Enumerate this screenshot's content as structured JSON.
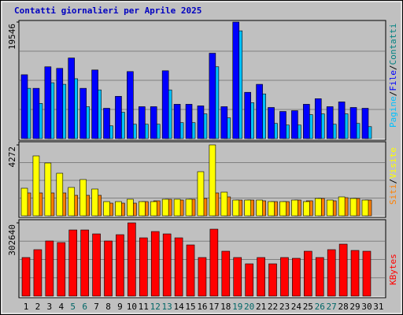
{
  "chart_data": {
    "type": "bar",
    "title": "Contatti giornalieri per Aprile 2025",
    "categories": [
      "1",
      "2",
      "3",
      "4",
      "5",
      "6",
      "7",
      "8",
      "9",
      "10",
      "11",
      "12",
      "13",
      "14",
      "15",
      "16",
      "17",
      "18",
      "19",
      "20",
      "21",
      "22",
      "23",
      "24",
      "25",
      "26",
      "27",
      "28",
      "29",
      "30",
      "31"
    ],
    "category_colors": [
      "#000000",
      "#000000",
      "#000000",
      "#000000",
      "#006666",
      "#006666",
      "#000000",
      "#000000",
      "#000000",
      "#000000",
      "#000000",
      "#006666",
      "#006666",
      "#000000",
      "#000000",
      "#000000",
      "#000000",
      "#000000",
      "#006666",
      "#006666",
      "#000000",
      "#000000",
      "#000000",
      "#000000",
      "#000000",
      "#006666",
      "#006666",
      "#000000",
      "#000000",
      "#000000",
      "#000000"
    ],
    "legend_separator": "/",
    "panels": [
      {
        "ylim": [
          0,
          19546
        ],
        "yticks": [
          19546
        ],
        "series": [
          {
            "name": "Pagine",
            "color": "#00c0ff",
            "axis": "right",
            "values": [
              8434,
              5891,
              9371,
              9104,
              10041,
              5355,
              8167,
              2142,
              4418,
              2410,
              2410,
              2410,
              8167,
              2678,
              2678,
              4150,
              12049,
              3481,
              18074,
              6024,
              7497,
              2544,
              2276,
              2276,
              4016,
              4150,
              2410,
              4150,
              2544,
              2008,
              null
            ]
          },
          {
            "name": "File",
            "color": "#0000ff",
            "axis": "left",
            "values": [
              10710,
              8434,
              12049,
              11781,
              13522,
              8434,
              11513,
              5087,
              7095,
              11246,
              5355,
              5355,
              11380,
              5757,
              5757,
              5489,
              14325,
              5355,
              19546,
              7765,
              9104,
              5221,
              4552,
              4686,
              5757,
              6694,
              5355,
              6158,
              5221,
              5087,
              null
            ]
          }
        ],
        "legend_only": {
          "name": "Contatti",
          "color": "#008080"
        }
      },
      {
        "ylim": [
          0,
          4272
        ],
        "yticks": [
          4272
        ],
        "series": [
          {
            "name": "Siti",
            "color": "#ff8000",
            "axis": "right",
            "values": [
              1377,
              1377,
              1377,
              1377,
              1234,
              1234,
              1234,
              760,
              760,
              760,
              854,
              902,
              997,
              949,
              997,
              1044,
              1377,
              1139,
              949,
              949,
              902,
              854,
              854,
              949,
              902,
              1044,
              902,
              1092,
              1044,
              949,
              null
            ]
          },
          {
            "name": "Visite",
            "color": "#ffff00",
            "axis": "left",
            "values": [
              1661,
              3608,
              3181,
              2563,
              1709,
              2184,
              1614,
              854,
              854,
              997,
              854,
              854,
              997,
              997,
              997,
              2658,
              4272,
              1424,
              949,
              949,
              949,
              854,
              854,
              949,
              854,
              1044,
              949,
              1139,
              1044,
              949,
              null
            ]
          }
        ]
      },
      {
        "ylim": [
          0,
          302640
        ],
        "yticks": [
          302640
        ],
        "series": [
          {
            "name": "KBytes",
            "color": "#ff0000",
            "axis": "single",
            "values": [
              159446,
              191986,
              227780,
              221272,
              273336,
              273336,
              257066,
              227780,
              253812,
              302640,
              240796,
              266828,
              257066,
              240796,
              211510,
              159446,
              276590,
              185478,
              159446,
              133414,
              159446,
              133414,
              159446,
              156192,
              185478,
              159446,
              191986,
              214764,
              188732,
              185478,
              null
            ]
          }
        ]
      }
    ]
  }
}
